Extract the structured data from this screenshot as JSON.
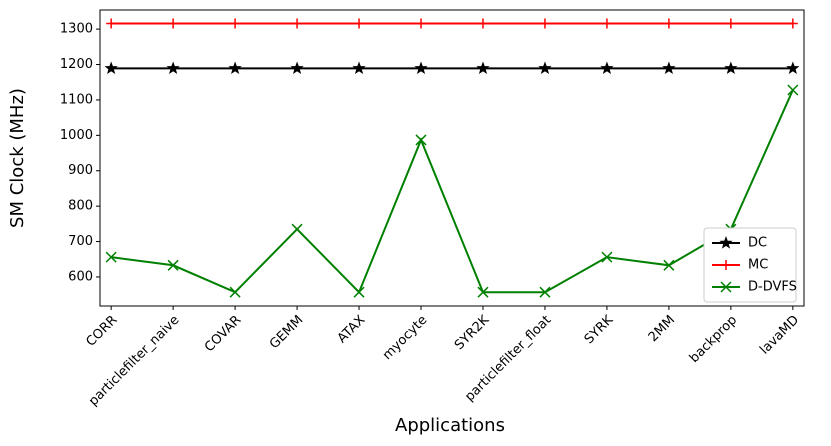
{
  "chart_data": {
    "type": "line",
    "y_label": "SM Clock (MHz)",
    "x_label": "Applications",
    "categories": [
      "CORR",
      "particlefilter_naive",
      "COVAR",
      "GEMM",
      "ATAX",
      "myocyte",
      "SYR2K",
      "particlefilter_float",
      "SYRK",
      "2MM",
      "backprop",
      "lavaMD"
    ],
    "series": [
      {
        "name": "DC",
        "color": "#000000",
        "marker": "star",
        "values": [
          1189,
          1189,
          1189,
          1189,
          1189,
          1189,
          1189,
          1189,
          1189,
          1189,
          1189,
          1189
        ]
      },
      {
        "name": "MC",
        "color": "#ff0000",
        "marker": "plus",
        "values": [
          1316,
          1316,
          1316,
          1316,
          1316,
          1316,
          1316,
          1316,
          1316,
          1316,
          1316,
          1316
        ]
      },
      {
        "name": "D-DVFS",
        "color": "#008000",
        "marker": "x",
        "values": [
          656,
          633,
          557,
          735,
          557,
          987,
          557,
          557,
          656,
          633,
          735,
          1128
        ]
      }
    ],
    "ylim": [
      518,
      1354
    ],
    "yticks": [
      600,
      700,
      800,
      900,
      1000,
      1100,
      1200,
      1300
    ],
    "legend": "lower right",
    "grid": false
  }
}
